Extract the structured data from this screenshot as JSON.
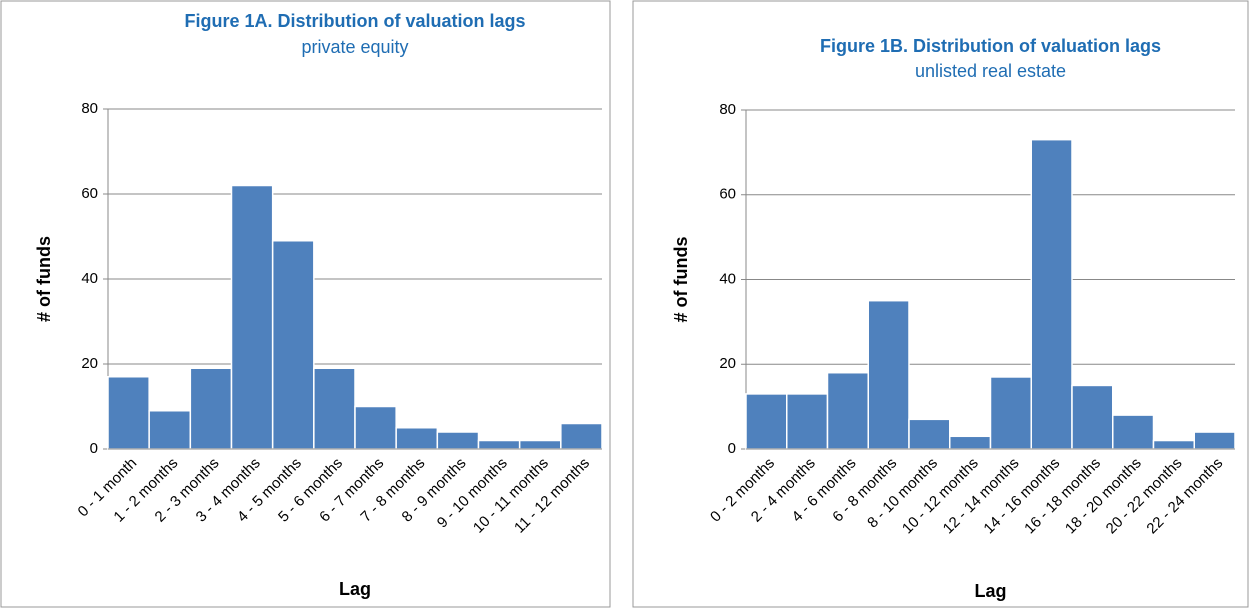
{
  "chart_data": [
    {
      "type": "bar",
      "title": "Figure 1A. Distribution of valuation lags",
      "subtitle": "private equity",
      "y_label": "# of funds",
      "x_label": "Lag",
      "categories": [
        "0 - 1 month",
        "1 - 2 months",
        "2 - 3 months",
        "3 - 4 months",
        "4 - 5 months",
        "5 - 6 months",
        "6 - 7 months",
        "7 - 8 months",
        "8 - 9 months",
        "9 - 10 months",
        "10 - 11 months",
        "11 - 12 months"
      ],
      "values": [
        17,
        9,
        19,
        62,
        49,
        19,
        10,
        5,
        4,
        2,
        2,
        6
      ],
      "color": "#4f81bd",
      "ylim": [
        0,
        80
      ],
      "yticks": [
        0,
        20,
        40,
        60,
        80
      ],
      "grid": true
    },
    {
      "type": "bar",
      "title": "Figure 1B. Distribution of valuation lags",
      "subtitle": "unlisted real estate",
      "y_label": "# of funds",
      "x_label": "Lag",
      "categories": [
        "0 - 2 months",
        "2 - 4 months",
        "4 - 6 months",
        "6 - 8 months",
        "8 - 10 months",
        "10 - 12 months",
        "12 - 14 months",
        "14 - 16 months",
        "16 - 18 months",
        "18 - 20 months",
        "20 - 22 months",
        "22 - 24 months"
      ],
      "values": [
        13,
        13,
        18,
        35,
        7,
        3,
        17,
        73,
        15,
        8,
        2,
        4
      ],
      "color": "#4f81bd",
      "ylim": [
        0,
        80
      ],
      "yticks": [
        0,
        20,
        40,
        60,
        80
      ],
      "grid": true
    }
  ]
}
